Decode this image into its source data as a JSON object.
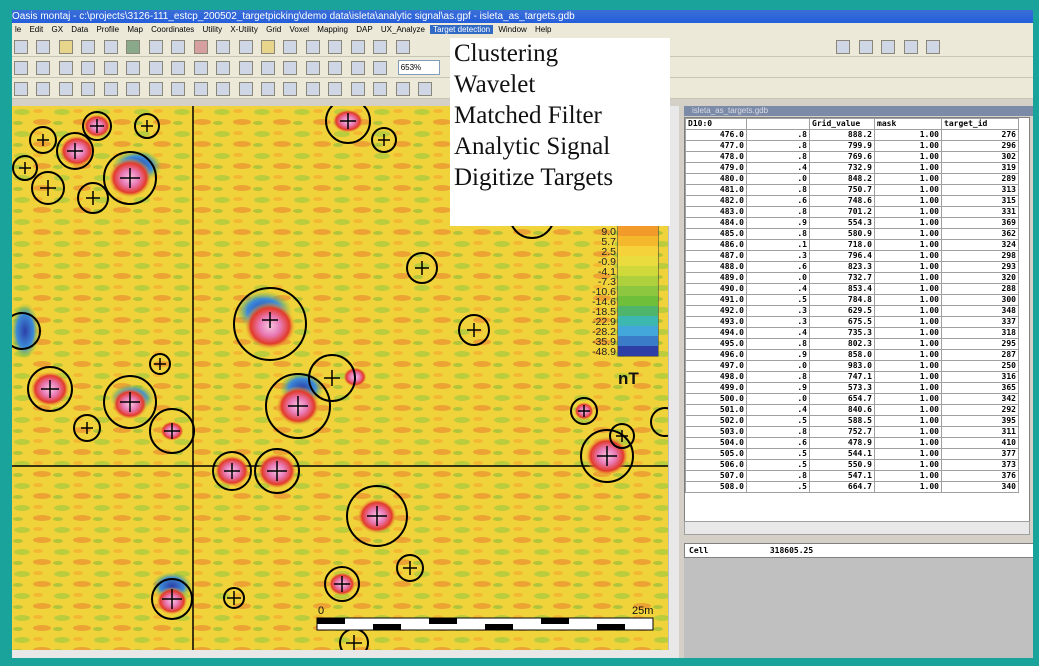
{
  "window": {
    "title": "Oasis montaj - c:\\projects\\3126-111_estcp_200502_targetpicking\\demo data\\isleta\\analytic signal\\as.gpf - isleta_as_targets.gdb"
  },
  "menu": {
    "items": [
      "le",
      "Edit",
      "GX",
      "Data",
      "Profile",
      "Map",
      "Coordinates",
      "Utility",
      "X-Utility",
      "Grid",
      "Voxel",
      "Mapping",
      "DAP",
      "UX_Analyze",
      "Target detection",
      "Window",
      "Help"
    ]
  },
  "toolbar": {
    "zoom_value": "653%"
  },
  "overlay_menu": {
    "items": [
      "Clustering",
      "Wavelet",
      "Matched Filter",
      "Analytic Signal",
      "Digitize Targets"
    ]
  },
  "map": {
    "colors": {
      "background": "#f0d23a",
      "deep_blue": "#2d3fa6",
      "pink": "#e87ab6",
      "red": "#e23a2a",
      "green": "#6fbf3a"
    },
    "legend_values": [
      "9.0",
      "5.7",
      "2.5",
      "-0.9",
      "-4.1",
      "-7.3",
      "-10.6",
      "-14.6",
      "-18.5",
      "-22.9",
      "-28.2",
      "-35.9",
      "-48.9"
    ],
    "legend_unit": "nT",
    "scale": {
      "start": "0",
      "end": "25m"
    }
  },
  "spreadsheet": {
    "title": "isleta_as_targets.gdb",
    "columns": [
      "D10:0",
      "Grid_value",
      "mask",
      "target_id"
    ],
    "rows": [
      [
        "476.0",
        ".8",
        "888.2",
        "1.00",
        "276"
      ],
      [
        "477.0",
        ".8",
        "799.9",
        "1.00",
        "296"
      ],
      [
        "478.0",
        ".8",
        "769.6",
        "1.00",
        "302"
      ],
      [
        "479.0",
        ".4",
        "732.9",
        "1.00",
        "319"
      ],
      [
        "480.0",
        ".0",
        "848.2",
        "1.00",
        "289"
      ],
      [
        "481.0",
        ".8",
        "750.7",
        "1.00",
        "313"
      ],
      [
        "482.0",
        ".6",
        "748.6",
        "1.00",
        "315"
      ],
      [
        "483.0",
        ".8",
        "701.2",
        "1.00",
        "331"
      ],
      [
        "484.0",
        ".9",
        "554.3",
        "1.00",
        "369"
      ],
      [
        "485.0",
        ".8",
        "580.9",
        "1.00",
        "362"
      ],
      [
        "486.0",
        ".1",
        "718.0",
        "1.00",
        "324"
      ],
      [
        "487.0",
        ".3",
        "796.4",
        "1.00",
        "298"
      ],
      [
        "488.0",
        ".6",
        "823.3",
        "1.00",
        "293"
      ],
      [
        "489.0",
        ".0",
        "732.7",
        "1.00",
        "320"
      ],
      [
        "490.0",
        ".4",
        "853.4",
        "1.00",
        "288"
      ],
      [
        "491.0",
        ".5",
        "784.8",
        "1.00",
        "300"
      ],
      [
        "492.0",
        ".3",
        "629.5",
        "1.00",
        "348"
      ],
      [
        "493.0",
        ".3",
        "675.5",
        "1.00",
        "337"
      ],
      [
        "494.0",
        ".4",
        "735.3",
        "1.00",
        "318"
      ],
      [
        "495.0",
        ".8",
        "802.3",
        "1.00",
        "295"
      ],
      [
        "496.0",
        ".9",
        "858.0",
        "1.00",
        "287"
      ],
      [
        "497.0",
        ".0",
        "983.0",
        "1.00",
        "250"
      ],
      [
        "498.0",
        ".8",
        "747.1",
        "1.00",
        "316"
      ],
      [
        "499.0",
        ".9",
        "573.3",
        "1.00",
        "365"
      ],
      [
        "500.0",
        ".0",
        "654.7",
        "1.00",
        "342"
      ],
      [
        "501.0",
        ".4",
        "840.6",
        "1.00",
        "292"
      ],
      [
        "502.0",
        ".5",
        "588.5",
        "1.00",
        "395"
      ],
      [
        "503.0",
        ".8",
        "752.7",
        "1.00",
        "311"
      ],
      [
        "504.0",
        ".6",
        "478.9",
        "1.00",
        "410"
      ],
      [
        "505.0",
        ".5",
        "544.1",
        "1.00",
        "377"
      ],
      [
        "506.0",
        ".5",
        "550.9",
        "1.00",
        "373"
      ],
      [
        "507.0",
        ".8",
        "547.1",
        "1.00",
        "376"
      ],
      [
        "508.0",
        ".5",
        "664.7",
        "1.00",
        "340"
      ]
    ],
    "cell_label": "Cell",
    "cell_value": "318605.25"
  }
}
